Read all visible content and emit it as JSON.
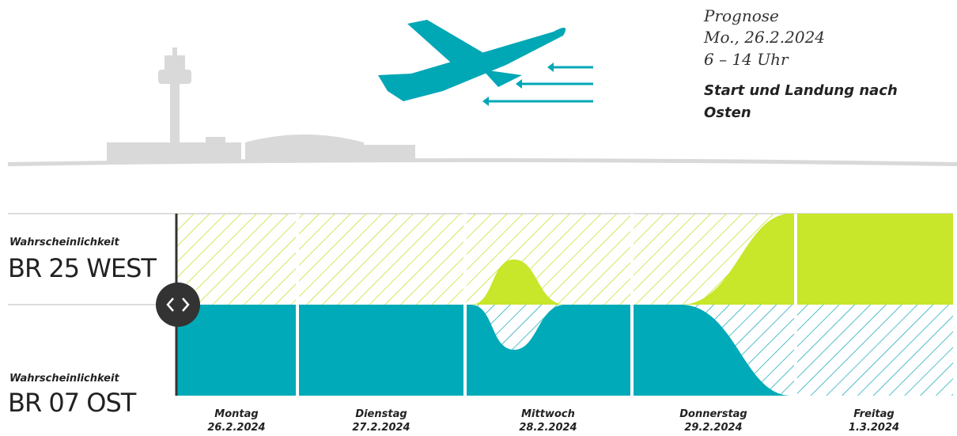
{
  "forecast": {
    "title": "Prognose",
    "date": "Mo., 26.2.2024",
    "time": "6 – 14 Uhr",
    "direction": [
      "Start und Landung nach",
      "Osten"
    ]
  },
  "runways": [
    {
      "caption": "Wahrscheinlichkeit",
      "name": "BR 25 WEST"
    },
    {
      "caption": "Wahrscheinlichkeit",
      "name": "BR 07 OST"
    }
  ],
  "days": [
    {
      "name": "Montag",
      "date": "26.2.2024"
    },
    {
      "name": "Dienstag",
      "date": "27.2.2024"
    },
    {
      "name": "Mittwoch",
      "date": "28.2.2024"
    },
    {
      "name": "Donnerstag",
      "date": "29.2.2024"
    },
    {
      "name": "Freitag",
      "date": "1.3.2024"
    }
  ]
}
